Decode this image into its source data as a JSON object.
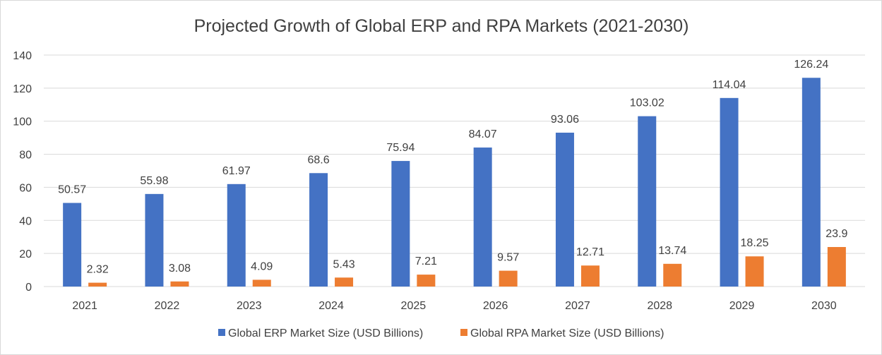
{
  "chart_data": {
    "type": "bar",
    "title": "Projected Growth of Global ERP and RPA Markets (2021-2030)",
    "xlabel": "",
    "ylabel": "",
    "categories": [
      "2021",
      "2022",
      "2023",
      "2024",
      "2025",
      "2026",
      "2027",
      "2028",
      "2029",
      "2030"
    ],
    "series": [
      {
        "name": "Global ERP Market Size (USD Billions)",
        "color": "#4472c4",
        "values": [
          50.57,
          55.98,
          61.97,
          68.6,
          75.94,
          84.07,
          93.06,
          103.02,
          114.04,
          126.24
        ]
      },
      {
        "name": "Global RPA Market Size (USD Billions)",
        "color": "#ed7d31",
        "values": [
          2.32,
          3.08,
          4.09,
          5.43,
          7.21,
          9.57,
          12.71,
          13.74,
          18.25,
          23.9
        ]
      }
    ],
    "ylim": [
      0,
      140
    ],
    "yticks": [
      "0",
      "20",
      "40",
      "60",
      "80",
      "100",
      "120",
      "140"
    ],
    "grid": true,
    "legend_position": "bottom"
  }
}
